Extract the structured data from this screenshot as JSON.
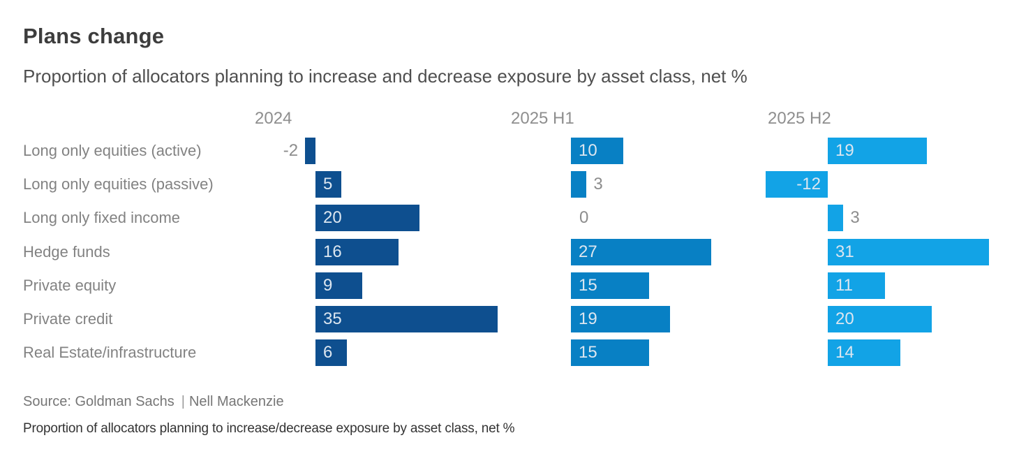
{
  "header": {
    "title": "Plans change",
    "subtitle": "Proportion of allocators planning to increase and decrease exposure by asset class, net %"
  },
  "footer": {
    "source": "Source: Goldman Sachs",
    "separator": "|",
    "author": "Nell Mackenzie",
    "caption": "Proportion of allocators planning to increase/decrease exposure by asset class, net %"
  },
  "colors": {
    "bar_2024": "#0e4f8f",
    "bar_2025_h1": "#0880c4",
    "bar_2025_h2": "#12a3e6",
    "value_label_inside": "#dce6f0",
    "value_label_outside": "#8c8c8c",
    "row_label": "#828282",
    "column_header": "#8e8e8e"
  },
  "chart_data": {
    "type": "bar",
    "orientation": "horizontal",
    "title": "Plans change",
    "subtitle": "Proportion of allocators planning to increase and decrease exposure by asset class, net %",
    "value_unit": "net %",
    "xlim": [
      -12,
      35
    ],
    "grid": false,
    "legend_position": "column-headers-top",
    "categories": [
      "Long only equities (active)",
      "Long only equities (passive)",
      "Long only fixed income",
      "Hedge funds",
      "Private equity",
      "Private credit",
      "Real Estate/infrastructure"
    ],
    "series": [
      {
        "name": "2024",
        "color": "#0e4f8f",
        "values": [
          -2,
          5,
          20,
          16,
          9,
          35,
          6
        ]
      },
      {
        "name": "2025 H1",
        "color": "#0880c4",
        "values": [
          10,
          3,
          0,
          27,
          15,
          19,
          15
        ]
      },
      {
        "name": "2025 H2",
        "color": "#12a3e6",
        "values": [
          19,
          -12,
          3,
          31,
          11,
          20,
          14
        ]
      }
    ]
  }
}
